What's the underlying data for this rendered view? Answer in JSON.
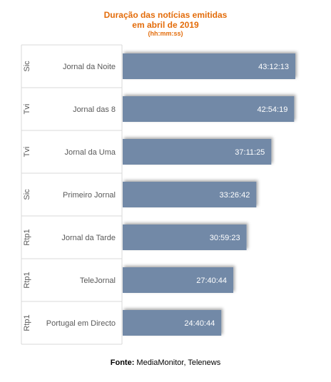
{
  "chart_data": {
    "type": "bar",
    "orientation": "horizontal",
    "title": "Duração das notícias emitidas",
    "title_line2": "em abril de 2019",
    "subtitle": "(hh:mm:ss)",
    "bar_color": "#7289a7",
    "title_color": "#e36c0a",
    "categories": [
      {
        "channel": "Sic",
        "program": "Jornal da Noite"
      },
      {
        "channel": "Tvi",
        "program": "Jornal das 8"
      },
      {
        "channel": "Tvi",
        "program": "Jornal da Uma"
      },
      {
        "channel": "Sic",
        "program": "Primeiro Jornal"
      },
      {
        "channel": "Rtp1",
        "program": "Jornal da Tarde"
      },
      {
        "channel": "Rtp1",
        "program": "TeleJornal"
      },
      {
        "channel": "Rtp1",
        "program": "Portugal em Directo"
      }
    ],
    "value_labels": [
      "43:12:13",
      "42:54:19",
      "37:11:25",
      "33:26:42",
      "30:59:23",
      "27:40:44",
      "24:40:44"
    ],
    "values_seconds": [
      155533,
      154459,
      133885,
      120402,
      111563,
      99644,
      88844
    ]
  },
  "source": {
    "label": "Fonte:",
    "text": " MediaMonitor, Telenews"
  }
}
